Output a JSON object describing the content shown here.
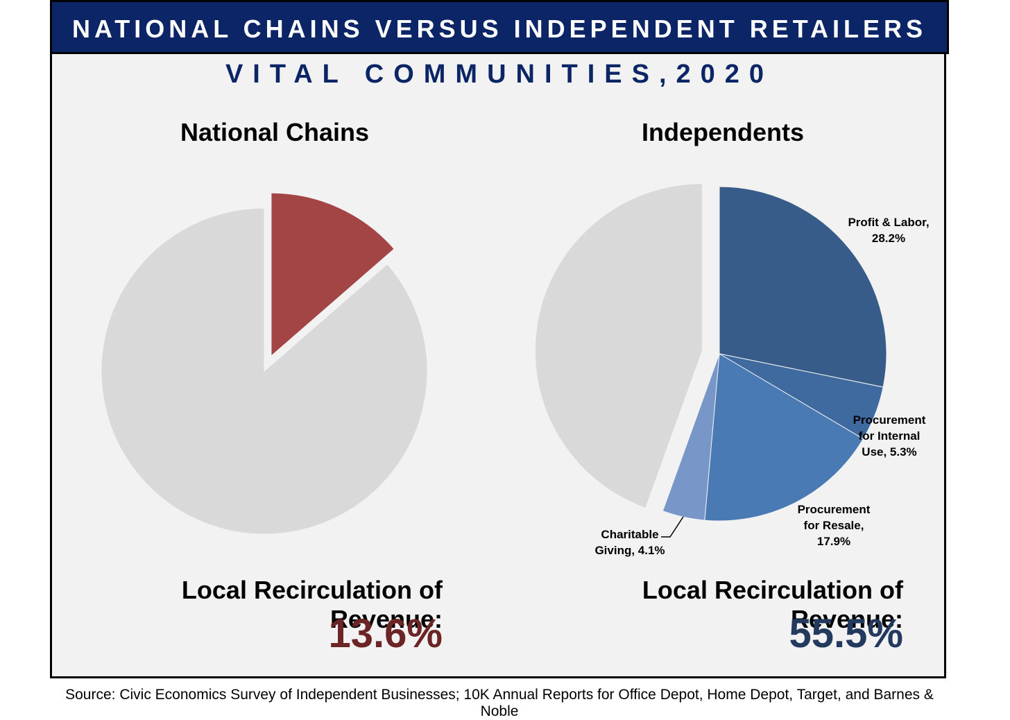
{
  "banner_title": "NATIONAL CHAINS VERSUS INDEPENDENT RETAILERS",
  "subtitle": "VITAL COMMUNITIES,2020",
  "source": "Source: Civic Economics Survey of Independent Businesses; 10K Annual Reports for Office Depot, Home Depot, Target, and Barnes & Noble",
  "colors": {
    "banner": "#0c2566",
    "chain_accent": "#a34545",
    "chain_value_text": "#6b2525",
    "indep_value_text": "#233a5e",
    "remainder": "#d9d9d9"
  },
  "chart_data": [
    {
      "type": "pie",
      "title": "National Chains",
      "slices": [
        {
          "label": "",
          "value": 13.6,
          "color": "#a34545",
          "exploded": true
        },
        {
          "label": "",
          "value": 86.4,
          "color": "#d9d9d9",
          "exploded": false
        }
      ],
      "summary_label": "Local Recirculation of Revenue:",
      "summary_value": "13.6%"
    },
    {
      "type": "pie",
      "title": "Independents",
      "slices": [
        {
          "label": "Profit & Labor, 28.2%",
          "value": 28.2,
          "color": "#375c8a"
        },
        {
          "label": "Procurement for Internal Use, 5.3%",
          "value": 5.3,
          "color": "#3f6aa0"
        },
        {
          "label": "Procurement for Resale, 17.9%",
          "value": 17.9,
          "color": "#4a7ab4"
        },
        {
          "label": "Charitable Giving, 4.1%",
          "value": 4.1,
          "color": "#7896c7"
        },
        {
          "label": "",
          "value": 44.5,
          "color": "#d9d9d9",
          "exploded": true
        }
      ],
      "summary_label": "Local Recirculation of Revenue:",
      "summary_value": "55.5%"
    }
  ]
}
